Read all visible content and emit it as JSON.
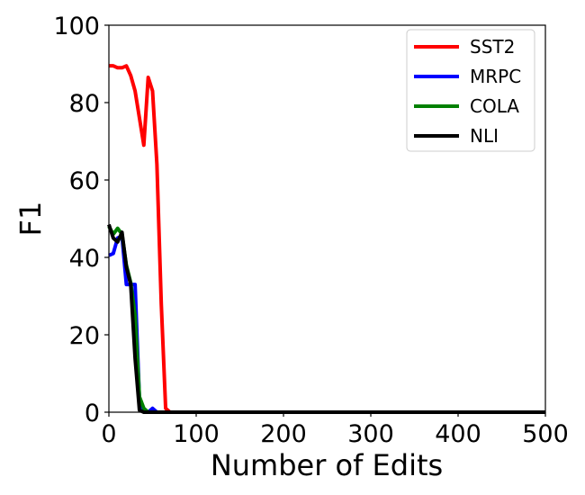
{
  "chart_data": {
    "type": "line",
    "title": "",
    "xlabel": "Number of Edits",
    "ylabel": "F1",
    "xlim": [
      0,
      500
    ],
    "ylim": [
      0,
      100
    ],
    "xticks": [
      0,
      100,
      200,
      300,
      400,
      500
    ],
    "yticks": [
      0,
      20,
      40,
      60,
      80,
      100
    ],
    "grid": false,
    "legend_position": "top-right",
    "series": [
      {
        "name": "SST2",
        "color": "#ff0000",
        "x": [
          0,
          5,
          10,
          15,
          20,
          25,
          30,
          35,
          40,
          45,
          50,
          55,
          60,
          65,
          70,
          80,
          100,
          200,
          300,
          400,
          500
        ],
        "y": [
          89.5,
          89.5,
          89.0,
          89.0,
          89.5,
          87.0,
          83.0,
          76.0,
          69.0,
          86.5,
          83.0,
          64.0,
          28.0,
          1.0,
          0,
          0,
          0,
          0,
          0,
          0,
          0
        ]
      },
      {
        "name": "MRPC",
        "color": "#0000ff",
        "x": [
          0,
          5,
          10,
          15,
          20,
          25,
          30,
          35,
          40,
          45,
          50,
          55,
          60,
          100,
          200,
          300,
          400,
          500
        ],
        "y": [
          40.5,
          41.0,
          45.0,
          45.5,
          33.0,
          33.0,
          33.0,
          3.0,
          0.5,
          0,
          1.0,
          0,
          0,
          0,
          0,
          0,
          0,
          0
        ]
      },
      {
        "name": "COLA",
        "color": "#008000",
        "x": [
          0,
          5,
          10,
          15,
          20,
          25,
          30,
          35,
          40,
          45,
          50,
          100,
          200,
          300,
          400,
          500
        ],
        "y": [
          48.0,
          46.0,
          47.5,
          46.0,
          38.0,
          33.5,
          25.0,
          4.0,
          1.0,
          0,
          0,
          0,
          0,
          0,
          0,
          0
        ]
      },
      {
        "name": "NLI",
        "color": "#000000",
        "x": [
          0,
          5,
          10,
          15,
          20,
          25,
          30,
          35,
          40,
          45,
          50,
          100,
          200,
          300,
          400,
          500
        ],
        "y": [
          48.5,
          45.0,
          44.0,
          46.5,
          37.5,
          33.0,
          14.0,
          0.5,
          0,
          0,
          0,
          0,
          0,
          0,
          0,
          0
        ]
      }
    ]
  }
}
